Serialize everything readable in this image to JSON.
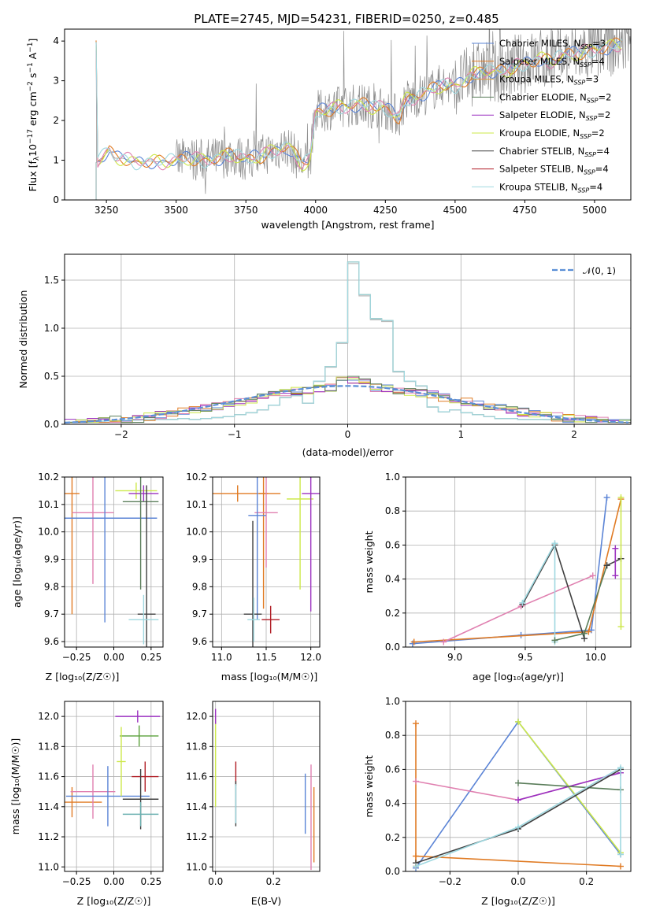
{
  "title": "PLATE=2745, MJD=54231, FIBERID=0250, z=0.485",
  "colors": {
    "Chabrier MILES": "#5b84d6",
    "Salpeter MILES": "#e07b24",
    "Kroupa MILES": "#e07b24",
    "Chabrier ELODIE": "#5a7d5a",
    "Salpeter ELODIE": "#9b30c0",
    "Kroupa ELODIE": "#cde84a",
    "Chabrier STELIB": "#404040",
    "Salpeter STELIB": "#b01c24",
    "Kroupa STELIB": "#9fd8e0",
    "pink": "#e080b0",
    "teal": "#6ab0b0",
    "green2": "#5aa03a"
  },
  "chart_data": [
    {
      "type": "line",
      "id": "spectrum",
      "xlabel": "wavelength [Angstrom, rest frame]",
      "ylabel": "Flux [f_λ 10^-17 erg cm^-2 s^-1 A^-1]",
      "xlim": [
        3100,
        5130
      ],
      "ylim": [
        0,
        4.3
      ],
      "xticks": [
        3250,
        3500,
        3750,
        4000,
        4250,
        4500,
        4750,
        5000
      ],
      "yticks": [
        0,
        1,
        2,
        3,
        4
      ],
      "legend": "top-right",
      "legend_entries": [
        {
          "base": "Chabrier MILES, N",
          "sub": "SSP",
          "tail": "=3",
          "color": "#5b84d6"
        },
        {
          "base": "Salpeter MILES, N",
          "sub": "SSP",
          "tail": "=4",
          "color": "#e07b24"
        },
        {
          "base": "Kroupa MILES, N",
          "sub": "SSP",
          "tail": "=3",
          "color": "#d8a040"
        },
        {
          "base": "Chabrier ELODIE, N",
          "sub": "SSP",
          "tail": "=2",
          "color": "#5a7d5a"
        },
        {
          "base": "Salpeter ELODIE, N",
          "sub": "SSP",
          "tail": "=2",
          "color": "#9b30c0"
        },
        {
          "base": "Kroupa ELODIE, N",
          "sub": "SSP",
          "tail": "=2",
          "color": "#cde84a"
        },
        {
          "base": "Chabrier STELIB, N",
          "sub": "SSP",
          "tail": "=4",
          "color": "#404040"
        },
        {
          "base": "Salpeter STELIB, N",
          "sub": "SSP",
          "tail": "=4",
          "color": "#b01c24"
        },
        {
          "base": "Kroupa STELIB, N",
          "sub": "SSP",
          "tail": "=4",
          "color": "#9fd8e0"
        }
      ],
      "model_trend": [
        [
          3215,
          0.95
        ],
        [
          3240,
          1.1
        ],
        [
          3260,
          1.25
        ],
        [
          3280,
          1.05
        ],
        [
          3310,
          1.05
        ],
        [
          3350,
          0.95
        ],
        [
          3400,
          0.98
        ],
        [
          3450,
          0.95
        ],
        [
          3500,
          0.98
        ],
        [
          3550,
          1.05
        ],
        [
          3600,
          1.0
        ],
        [
          3650,
          1.05
        ],
        [
          3700,
          1.15
        ],
        [
          3750,
          1.0
        ],
        [
          3800,
          1.1
        ],
        [
          3850,
          1.25
        ],
        [
          3900,
          1.35
        ],
        [
          3950,
          0.9
        ],
        [
          3980,
          1.0
        ],
        [
          4000,
          2.2
        ],
        [
          4050,
          2.3
        ],
        [
          4100,
          2.35
        ],
        [
          4150,
          2.4
        ],
        [
          4200,
          2.35
        ],
        [
          4250,
          2.3
        ],
        [
          4300,
          2.1
        ],
        [
          4320,
          2.5
        ],
        [
          4400,
          2.7
        ],
        [
          4450,
          2.9
        ],
        [
          4500,
          2.85
        ],
        [
          4550,
          3.1
        ],
        [
          4600,
          3.25
        ],
        [
          4650,
          3.2
        ],
        [
          4700,
          3.3
        ],
        [
          4750,
          3.45
        ],
        [
          4800,
          3.55
        ],
        [
          4850,
          3.5
        ],
        [
          4900,
          3.65
        ],
        [
          4950,
          3.7
        ],
        [
          5000,
          3.8
        ],
        [
          5050,
          3.85
        ],
        [
          5100,
          3.95
        ]
      ]
    },
    {
      "type": "histogram",
      "id": "residuals",
      "xlabel": "(data-model)/error",
      "ylabel": "Normed distribution",
      "xlim": [
        -2.5,
        2.5
      ],
      "ylim": [
        0,
        1.77
      ],
      "xticks": [
        -2,
        -1,
        0,
        1,
        2
      ],
      "yticks": [
        0.0,
        0.5,
        1.0,
        1.5
      ],
      "legend_label": "N(0,1)",
      "bin_width": 0.1,
      "narrow_hist": {
        "center": 0,
        "values": [
          0.05,
          0.05,
          0.06,
          0.05,
          0.06,
          0.07,
          0.08,
          0.1,
          0.12,
          0.15,
          0.2,
          0.28,
          0.3,
          0.22,
          0.45,
          0.6,
          0.85,
          1.69,
          1.35,
          1.1,
          1.08,
          0.55,
          0.45,
          0.4,
          0.18,
          0.13,
          0.15,
          0.12,
          0.1,
          0.08,
          0.06,
          0.06,
          0.05,
          0.05
        ]
      }
    },
    {
      "type": "scatter",
      "id": "age_vs_Z",
      "xlabel": "Z [log10(Z/Z⊙)]",
      "ylabel": "age [log10(age/yr)]",
      "xlim": [
        -0.33,
        0.33
      ],
      "ylim": [
        9.58,
        10.2
      ],
      "xticks": [
        -0.25,
        0.0,
        0.25
      ],
      "yticks": [
        9.6,
        9.7,
        9.8,
        9.9,
        10.0,
        10.1,
        10.2
      ],
      "points": [
        {
          "x": -0.28,
          "y": 10.14,
          "xerr": 0.05,
          "yerr": 0.44,
          "color": "#e07b24"
        },
        {
          "x": -0.14,
          "y": 10.07,
          "xerr": 0.14,
          "yerr": 0.26,
          "color": "#e080b0"
        },
        {
          "x": -0.06,
          "y": 10.05,
          "xerr": 0.35,
          "yerr": 0.38,
          "color": "#5b84d6"
        },
        {
          "x": 0.15,
          "y": 10.15,
          "xerr": 0.14,
          "yerr": 0.03,
          "color": "#cde84a"
        },
        {
          "x": 0.2,
          "y": 10.14,
          "xerr": 0.1,
          "yerr": 0.03,
          "color": "#9b30c0"
        },
        {
          "x": 0.18,
          "y": 10.11,
          "xerr": 0.12,
          "yerr": 0.32,
          "color": "#5a7d5a"
        },
        {
          "x": 0.22,
          "y": 9.7,
          "xerr": 0.06,
          "yerr": 0.47,
          "color": "#404040"
        },
        {
          "x": 0.2,
          "y": 9.68,
          "xerr": 0.1,
          "yerr": 0.09,
          "color": "#9fd8e0"
        }
      ]
    },
    {
      "type": "scatter",
      "id": "age_vs_mass",
      "xlabel": "mass [log10(M/M⊙)]",
      "ylabel": "",
      "xlim": [
        10.9,
        12.1
      ],
      "ylim": [
        9.58,
        10.2
      ],
      "xticks": [
        11.0,
        11.5,
        12.0
      ],
      "yticks": [
        9.6,
        9.7,
        9.8,
        9.9,
        10.0,
        10.1,
        10.2
      ],
      "points": [
        {
          "x": 11.18,
          "y": 10.14,
          "xerr": 0.48,
          "yerr": 0.03,
          "color": "#e07b24"
        },
        {
          "x": 11.47,
          "y": 10.14,
          "xerr": 0.05,
          "yerr": 0.42,
          "color": "#e07b24"
        },
        {
          "x": 11.5,
          "y": 10.07,
          "xerr": 0.13,
          "yerr": 0.2,
          "color": "#e080b0"
        },
        {
          "x": 11.4,
          "y": 10.06,
          "xerr": 0.1,
          "yerr": 0.38,
          "color": "#5b84d6"
        },
        {
          "x": 11.88,
          "y": 10.12,
          "xerr": 0.15,
          "yerr": 0.33,
          "color": "#cde84a"
        },
        {
          "x": 12.0,
          "y": 10.14,
          "xerr": 0.1,
          "yerr": 0.43,
          "color": "#9b30c0"
        },
        {
          "x": 11.35,
          "y": 9.7,
          "xerr": 0.1,
          "yerr": 0.34,
          "color": "#404040"
        },
        {
          "x": 11.55,
          "y": 9.68,
          "xerr": 0.1,
          "yerr": 0.05,
          "color": "#b01c24"
        },
        {
          "x": 11.36,
          "y": 9.68,
          "xerr": 0.07,
          "yerr": 0.08,
          "color": "#9fd8e0"
        }
      ]
    },
    {
      "type": "line",
      "id": "mass_weight_vs_age",
      "xlabel": "age [log10(age/yr)]",
      "ylabel": "mass weight",
      "xlim": [
        8.65,
        10.25
      ],
      "ylim": [
        0,
        1
      ],
      "xticks": [
        9.0,
        9.5,
        10.0
      ],
      "yticks": [
        0.0,
        0.2,
        0.4,
        0.6,
        0.8,
        1.0
      ],
      "series": [
        {
          "color": "#5b84d6",
          "x": [
            8.7,
            9.47,
            9.97,
            10.08
          ],
          "y": [
            0.02,
            0.07,
            0.1,
            0.88
          ]
        },
        {
          "color": "#e07b24",
          "x": [
            8.71,
            9.95,
            10.18
          ],
          "y": [
            0.03,
            0.09,
            0.87
          ]
        },
        {
          "color": "#e080b0",
          "x": [
            8.92,
            9.47,
            9.98
          ],
          "y": [
            0.03,
            0.24,
            0.42
          ]
        },
        {
          "color": "#404040",
          "x": [
            9.48,
            9.71,
            9.92
          ],
          "y": [
            0.25,
            0.6,
            0.05
          ]
        },
        {
          "color": "#9fd8e0",
          "x": [
            9.48,
            9.71,
            9.71
          ],
          "y": [
            0.26,
            0.61,
            0.03
          ]
        },
        {
          "color": "#5a7d5a",
          "x": [
            9.71,
            9.92,
            10.08
          ],
          "y": [
            0.04,
            0.08,
            0.48
          ]
        },
        {
          "color": "#404040",
          "x": [
            10.08,
            10.18
          ],
          "y": [
            0.48,
            0.52
          ]
        },
        {
          "color": "#9b30c0",
          "x": [
            10.14,
            10.14
          ],
          "y": [
            0.42,
            0.58
          ]
        },
        {
          "color": "#cde84a",
          "x": [
            10.18,
            10.18
          ],
          "y": [
            0.12,
            0.88
          ]
        }
      ]
    },
    {
      "type": "scatter",
      "id": "mass_vs_Z",
      "xlabel": "Z [log10(Z/Z⊙)]",
      "ylabel": "mass [log10(M/M⊙)]",
      "xlim": [
        -0.33,
        0.33
      ],
      "ylim": [
        10.97,
        12.1
      ],
      "xticks": [
        -0.25,
        0.0,
        0.25
      ],
      "yticks": [
        11.0,
        11.2,
        11.4,
        11.6,
        11.8,
        12.0
      ],
      "points": [
        {
          "x": -0.28,
          "y": 11.43,
          "xerr": 0.2,
          "yerr": 0.1,
          "color": "#e07b24"
        },
        {
          "x": -0.14,
          "y": 11.5,
          "xerr": 0.15,
          "yerr": 0.18,
          "color": "#e080b0"
        },
        {
          "x": -0.04,
          "y": 11.47,
          "xerr": 0.28,
          "yerr": 0.2,
          "color": "#5b84d6"
        },
        {
          "x": 0.16,
          "y": 12.0,
          "xerr": 0.15,
          "yerr": 0.04,
          "color": "#9b30c0"
        },
        {
          "x": 0.17,
          "y": 11.87,
          "xerr": 0.13,
          "yerr": 0.07,
          "color": "#5aa03a"
        },
        {
          "x": 0.05,
          "y": 11.7,
          "xerr": 0.03,
          "yerr": 0.23,
          "color": "#cde84a"
        },
        {
          "x": 0.21,
          "y": 11.6,
          "xerr": 0.09,
          "yerr": 0.1,
          "color": "#b01c24"
        },
        {
          "x": 0.18,
          "y": 11.45,
          "xerr": 0.12,
          "yerr": 0.2,
          "color": "#404040"
        },
        {
          "x": 0.18,
          "y": 11.35,
          "xerr": 0.12,
          "yerr": 0.08,
          "color": "#6ab0b0"
        }
      ]
    },
    {
      "type": "scatter",
      "id": "mass_vs_ebv",
      "xlabel": "E(B-V)",
      "ylabel": "",
      "xlim": [
        -0.01,
        0.36
      ],
      "ylim": [
        10.97,
        12.1
      ],
      "xticks": [
        0.0,
        0.2
      ],
      "yticks": [
        11.0,
        11.2,
        11.4,
        11.6,
        11.8,
        12.0
      ],
      "points": [
        {
          "x": 0.0,
          "y": 11.7,
          "xerr": 0,
          "yerr": 0.3,
          "color": "#cde84a"
        },
        {
          "x": 0.0,
          "y": 12.0,
          "xerr": 0,
          "yerr": 0.05,
          "color": "#9b30c0"
        },
        {
          "x": 0.07,
          "y": 11.62,
          "xerr": 0,
          "yerr": 0.08,
          "color": "#b01c24"
        },
        {
          "x": 0.07,
          "y": 11.42,
          "xerr": 0,
          "yerr": 0.15,
          "color": "#404040"
        },
        {
          "x": 0.07,
          "y": 11.42,
          "xerr": 0,
          "yerr": 0.13,
          "color": "#9fd8e0"
        },
        {
          "x": 0.31,
          "y": 11.42,
          "xerr": 0,
          "yerr": 0.2,
          "color": "#5b84d6"
        },
        {
          "x": 0.33,
          "y": 11.33,
          "xerr": 0,
          "yerr": 0.35,
          "color": "#e080b0"
        },
        {
          "x": 0.34,
          "y": 11.28,
          "xerr": 0,
          "yerr": 0.25,
          "color": "#e07b24"
        }
      ]
    },
    {
      "type": "line",
      "id": "mass_weight_vs_Z",
      "xlabel": "Z [log10(Z/Z⊙)]",
      "ylabel": "mass weight",
      "xlim": [
        -0.33,
        0.33
      ],
      "ylim": [
        0,
        1
      ],
      "xticks": [
        -0.2,
        0.0,
        0.2
      ],
      "yticks": [
        0.0,
        0.2,
        0.4,
        0.6,
        0.8,
        1.0
      ],
      "series": [
        {
          "color": "#5b84d6",
          "x": [
            -0.3,
            0.0,
            0.3
          ],
          "y": [
            0.02,
            0.88,
            0.1
          ]
        },
        {
          "color": "#cde84a",
          "x": [
            0.0,
            0.3
          ],
          "y": [
            0.88,
            0.11
          ]
        },
        {
          "color": "#e07b24",
          "x": [
            -0.3,
            -0.3,
            -0.3,
            0.3
          ],
          "y": [
            0.87,
            0.03,
            0.09,
            0.03
          ]
        },
        {
          "color": "#e080b0",
          "x": [
            -0.3,
            0.0,
            0.3
          ],
          "y": [
            0.53,
            0.42,
            0.58
          ]
        },
        {
          "color": "#9b30c0",
          "x": [
            0.0,
            0.3
          ],
          "y": [
            0.42,
            0.58
          ]
        },
        {
          "color": "#5a7d5a",
          "x": [
            0.0,
            0.3
          ],
          "y": [
            0.52,
            0.48
          ]
        },
        {
          "color": "#404040",
          "x": [
            -0.3,
            0.0,
            0.3
          ],
          "y": [
            0.05,
            0.25,
            0.6
          ]
        },
        {
          "color": "#9fd8e0",
          "x": [
            -0.3,
            0.0,
            0.3,
            0.3
          ],
          "y": [
            0.03,
            0.26,
            0.61,
            0.1
          ]
        }
      ]
    }
  ]
}
